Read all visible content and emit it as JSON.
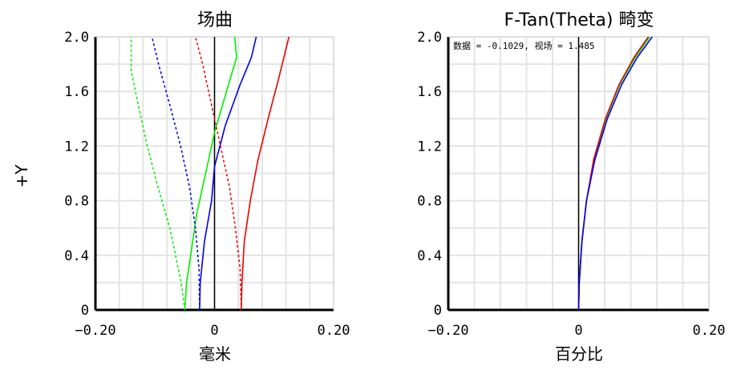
{
  "y_axis_label": "+Y",
  "chart_data": [
    {
      "type": "line",
      "title": "场曲",
      "xlabel": "毫米",
      "xlim": [
        -0.2,
        0.2
      ],
      "ylim": [
        0,
        2.0
      ],
      "xticks": [
        "−0.20",
        "0",
        "0.20"
      ],
      "yticks": [
        "0",
        "0.4",
        "0.8",
        "1.2",
        "1.6",
        "2.0"
      ],
      "grid": true,
      "series": [
        {
          "color": "#00ee00",
          "dash": false,
          "points": [
            [
              -0.05,
              0
            ],
            [
              -0.047,
              0.2
            ],
            [
              -0.04,
              0.4
            ],
            [
              -0.03,
              0.7
            ],
            [
              -0.015,
              1.0
            ],
            [
              0.0,
              1.3
            ],
            [
              0.02,
              1.6
            ],
            [
              0.037,
              1.85
            ],
            [
              0.034,
              2.0
            ]
          ]
        },
        {
          "color": "#00ee00",
          "dash": true,
          "points": [
            [
              -0.05,
              0
            ],
            [
              -0.056,
              0.2
            ],
            [
              -0.075,
              0.6
            ],
            [
              -0.095,
              0.9
            ],
            [
              -0.113,
              1.2
            ],
            [
              -0.128,
              1.5
            ],
            [
              -0.14,
              1.75
            ],
            [
              -0.14,
              2.0
            ]
          ]
        },
        {
          "color": "#0000ee",
          "dash": false,
          "points": [
            [
              -0.025,
              0
            ],
            [
              -0.024,
              0.2
            ],
            [
              -0.017,
              0.5
            ],
            [
              -0.005,
              0.8
            ],
            [
              0.0,
              1.05
            ],
            [
              0.018,
              1.35
            ],
            [
              0.043,
              1.65
            ],
            [
              0.062,
              1.85
            ],
            [
              0.07,
              2.0
            ]
          ]
        },
        {
          "color": "#0000ee",
          "dash": true,
          "points": [
            [
              -0.025,
              0
            ],
            [
              -0.026,
              0.3
            ],
            [
              -0.032,
              0.6
            ],
            [
              -0.042,
              0.9
            ],
            [
              -0.057,
              1.2
            ],
            [
              -0.075,
              1.5
            ],
            [
              -0.094,
              1.8
            ],
            [
              -0.105,
              2.0
            ]
          ]
        },
        {
          "color": "#ee0000",
          "dash": false,
          "points": [
            [
              0.045,
              0
            ],
            [
              0.046,
              0.2
            ],
            [
              0.05,
              0.5
            ],
            [
              0.06,
              0.8
            ],
            [
              0.073,
              1.1
            ],
            [
              0.09,
              1.4
            ],
            [
              0.108,
              1.7
            ],
            [
              0.125,
              2.0
            ]
          ]
        },
        {
          "color": "#ee0000",
          "dash": true,
          "points": [
            [
              0.045,
              0
            ],
            [
              0.043,
              0.3
            ],
            [
              0.035,
              0.6
            ],
            [
              0.025,
              0.9
            ],
            [
              0.01,
              1.2
            ],
            [
              -0.005,
              1.5
            ],
            [
              -0.02,
              1.8
            ],
            [
              -0.032,
              2.0
            ]
          ]
        }
      ]
    },
    {
      "type": "line",
      "title": "F-Tan(Theta) 畸变",
      "xlabel": "百分比",
      "xlim": [
        -0.2,
        0.2
      ],
      "ylim": [
        0,
        2.0
      ],
      "xticks": [
        "−0.20",
        "0",
        "0.20"
      ],
      "yticks": [
        "0",
        "0.4",
        "0.8",
        "1.2",
        "1.6",
        "2.0"
      ],
      "grid": true,
      "annotation": "数据 = -0.1029, 视场 = 1.485",
      "series": [
        {
          "color": "#00ee00",
          "dash": false,
          "points": [
            [
              0,
              0
            ],
            [
              0.001,
              0.2
            ],
            [
              0.005,
              0.5
            ],
            [
              0.012,
              0.8
            ],
            [
              0.024,
              1.1
            ],
            [
              0.042,
              1.4
            ],
            [
              0.063,
              1.65
            ],
            [
              0.087,
              1.85
            ],
            [
              0.109,
              2.0
            ]
          ]
        },
        {
          "color": "#ee0000",
          "dash": false,
          "points": [
            [
              0,
              0
            ],
            [
              0.001,
              0.2
            ],
            [
              0.005,
              0.5
            ],
            [
              0.012,
              0.8
            ],
            [
              0.023,
              1.1
            ],
            [
              0.041,
              1.4
            ],
            [
              0.062,
              1.65
            ],
            [
              0.085,
              1.85
            ],
            [
              0.107,
              2.0
            ]
          ]
        },
        {
          "color": "#0000ee",
          "dash": false,
          "points": [
            [
              0,
              0
            ],
            [
              0.001,
              0.2
            ],
            [
              0.005,
              0.5
            ],
            [
              0.012,
              0.8
            ],
            [
              0.025,
              1.1
            ],
            [
              0.044,
              1.4
            ],
            [
              0.066,
              1.65
            ],
            [
              0.09,
              1.85
            ],
            [
              0.113,
              2.0
            ]
          ]
        }
      ]
    }
  ]
}
